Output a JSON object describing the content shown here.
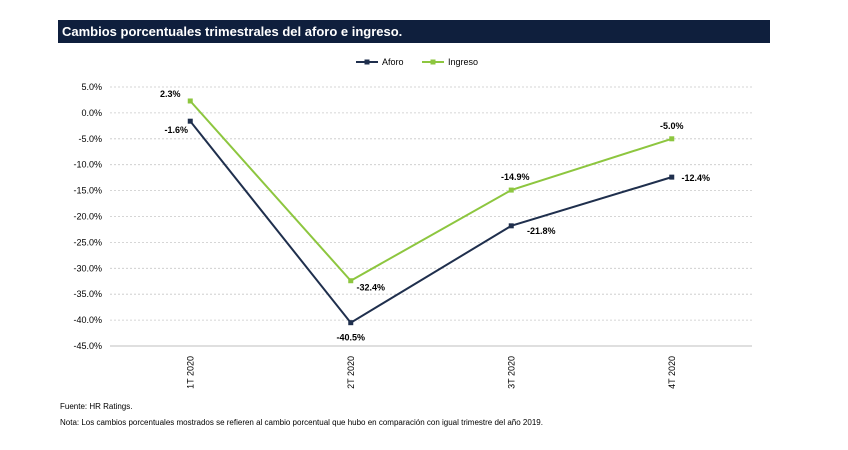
{
  "title": "Cambios porcentuales trimestrales del aforo e ingreso.",
  "source_note": "Fuente: HR Ratings.",
  "footnote": "Nota: Los cambios porcentuales mostrados se refieren al cambio porcentual que hubo en comparación con igual trimestre del año 2019.",
  "chart_data": {
    "type": "line",
    "title": "Cambios porcentuales trimestrales del aforo e ingreso.",
    "categories": [
      "1T 2020",
      "2T 2020",
      "3T 2020",
      "4T 2020"
    ],
    "series": [
      {
        "name": "Aforo",
        "values": [
          -1.6,
          -40.5,
          -21.8,
          -12.4
        ],
        "labels": [
          "-1.6%",
          "-40.5%",
          "-21.8%",
          "-12.4%"
        ],
        "color": "#1f2f4d"
      },
      {
        "name": "Ingreso",
        "values": [
          2.3,
          -32.4,
          -14.9,
          -5.0
        ],
        "labels": [
          "2.3%",
          "-32.4%",
          "-14.9%",
          "-5.0%"
        ],
        "color": "#8dc63f"
      }
    ],
    "ylim": [
      -45,
      5
    ],
    "yticks": [
      "5.0%",
      "0.0%",
      "-5.0%",
      "-10.0%",
      "-15.0%",
      "-20.0%",
      "-25.0%",
      "-30.0%",
      "-35.0%",
      "-40.0%",
      "-45.0%"
    ],
    "grid": true,
    "legend": "top-center",
    "xlabel": "",
    "ylabel": ""
  }
}
